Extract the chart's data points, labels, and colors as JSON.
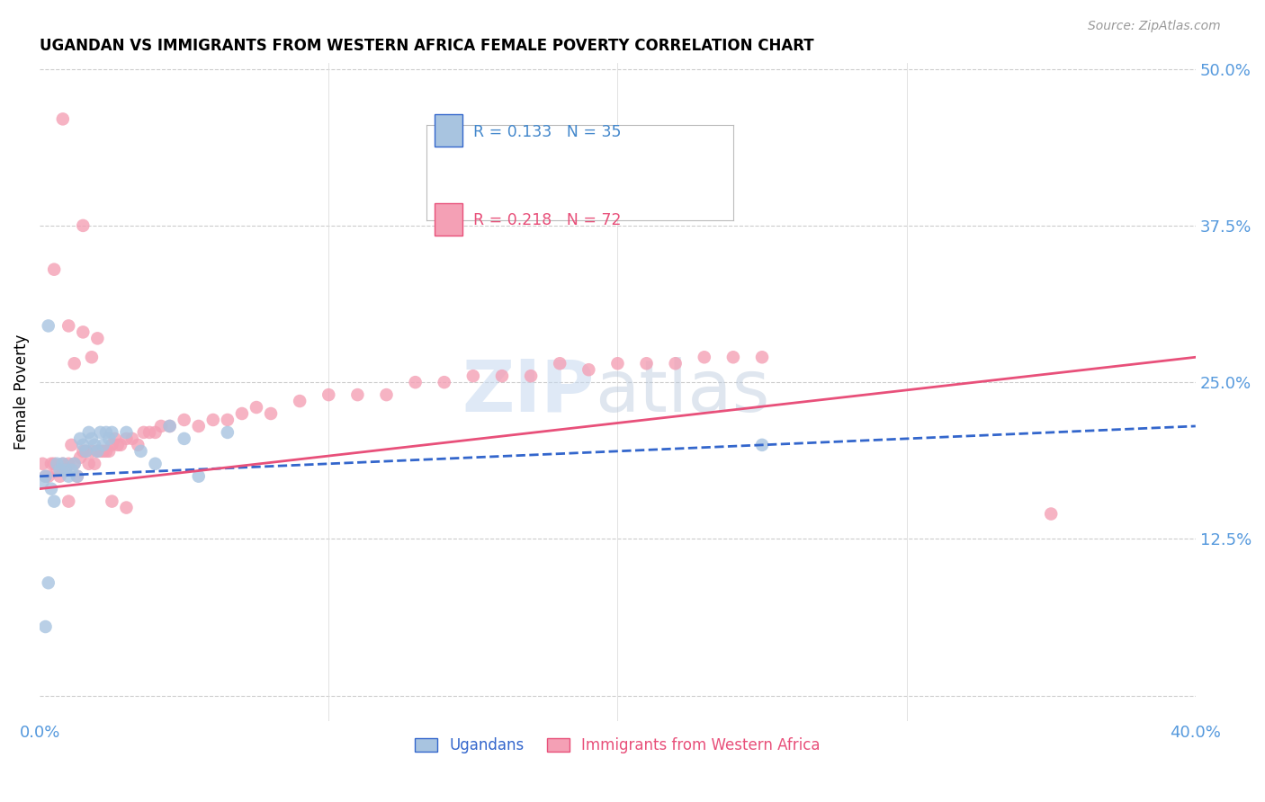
{
  "title": "UGANDAN VS IMMIGRANTS FROM WESTERN AFRICA FEMALE POVERTY CORRELATION CHART",
  "source": "Source: ZipAtlas.com",
  "ylabel": "Female Poverty",
  "x_min": 0.0,
  "x_max": 0.4,
  "y_min": 0.0,
  "y_max": 0.5,
  "x_ticks": [
    0.0,
    0.1,
    0.2,
    0.3,
    0.4
  ],
  "x_tick_labels": [
    "0.0%",
    "",
    "",
    "",
    "40.0%"
  ],
  "y_ticks": [
    0.0,
    0.125,
    0.25,
    0.375,
    0.5
  ],
  "y_tick_labels": [
    "",
    "12.5%",
    "25.0%",
    "37.5%",
    "50.0%"
  ],
  "ugandan_color": "#a8c4e0",
  "immigrant_color": "#f4a0b5",
  "ugandan_line_color": "#3366cc",
  "immigrant_line_color": "#e8507a",
  "legend_r1": "R = 0.133",
  "legend_n1": "N = 35",
  "legend_r2": "R = 0.218",
  "legend_n2": "N = 72",
  "legend1_label": "Ugandans",
  "legend2_label": "Immigrants from Western Africa",
  "watermark_zip": "ZIP",
  "watermark_atlas": "atlas",
  "ugandan_x": [
    0.001,
    0.002,
    0.003,
    0.004,
    0.005,
    0.006,
    0.007,
    0.008,
    0.009,
    0.01,
    0.011,
    0.012,
    0.013,
    0.014,
    0.015,
    0.016,
    0.017,
    0.018,
    0.019,
    0.02,
    0.021,
    0.022,
    0.023,
    0.024,
    0.025,
    0.03,
    0.035,
    0.04,
    0.045,
    0.05,
    0.055,
    0.065,
    0.25,
    0.003,
    0.002
  ],
  "ugandan_y": [
    0.17,
    0.175,
    0.09,
    0.165,
    0.155,
    0.185,
    0.18,
    0.185,
    0.18,
    0.175,
    0.18,
    0.185,
    0.175,
    0.205,
    0.2,
    0.195,
    0.21,
    0.205,
    0.2,
    0.195,
    0.21,
    0.2,
    0.21,
    0.205,
    0.21,
    0.21,
    0.195,
    0.185,
    0.215,
    0.205,
    0.175,
    0.21,
    0.2,
    0.295,
    0.055
  ],
  "immigrant_x": [
    0.001,
    0.002,
    0.003,
    0.004,
    0.005,
    0.006,
    0.007,
    0.008,
    0.009,
    0.01,
    0.011,
    0.012,
    0.013,
    0.014,
    0.015,
    0.016,
    0.017,
    0.018,
    0.019,
    0.02,
    0.021,
    0.022,
    0.023,
    0.024,
    0.025,
    0.026,
    0.027,
    0.028,
    0.03,
    0.032,
    0.034,
    0.036,
    0.038,
    0.04,
    0.042,
    0.045,
    0.05,
    0.055,
    0.06,
    0.065,
    0.07,
    0.075,
    0.08,
    0.09,
    0.1,
    0.11,
    0.12,
    0.13,
    0.14,
    0.15,
    0.16,
    0.17,
    0.18,
    0.19,
    0.2,
    0.21,
    0.22,
    0.23,
    0.24,
    0.25,
    0.01,
    0.015,
    0.02,
    0.025,
    0.03,
    0.01,
    0.005,
    0.008,
    0.012,
    0.018,
    0.35,
    0.015
  ],
  "immigrant_y": [
    0.185,
    0.175,
    0.175,
    0.185,
    0.185,
    0.18,
    0.175,
    0.185,
    0.18,
    0.185,
    0.2,
    0.185,
    0.175,
    0.19,
    0.195,
    0.195,
    0.185,
    0.195,
    0.185,
    0.195,
    0.195,
    0.195,
    0.195,
    0.195,
    0.2,
    0.205,
    0.2,
    0.2,
    0.205,
    0.205,
    0.2,
    0.21,
    0.21,
    0.21,
    0.215,
    0.215,
    0.22,
    0.215,
    0.22,
    0.22,
    0.225,
    0.23,
    0.225,
    0.235,
    0.24,
    0.24,
    0.24,
    0.25,
    0.25,
    0.255,
    0.255,
    0.255,
    0.265,
    0.26,
    0.265,
    0.265,
    0.265,
    0.27,
    0.27,
    0.27,
    0.295,
    0.29,
    0.285,
    0.155,
    0.15,
    0.155,
    0.34,
    0.46,
    0.265,
    0.27,
    0.145,
    0.375
  ],
  "ug_line_x0": 0.0,
  "ug_line_x1": 0.4,
  "ug_line_y0": 0.175,
  "ug_line_y1": 0.215,
  "im_line_x0": 0.0,
  "im_line_x1": 0.4,
  "im_line_y0": 0.165,
  "im_line_y1": 0.27
}
